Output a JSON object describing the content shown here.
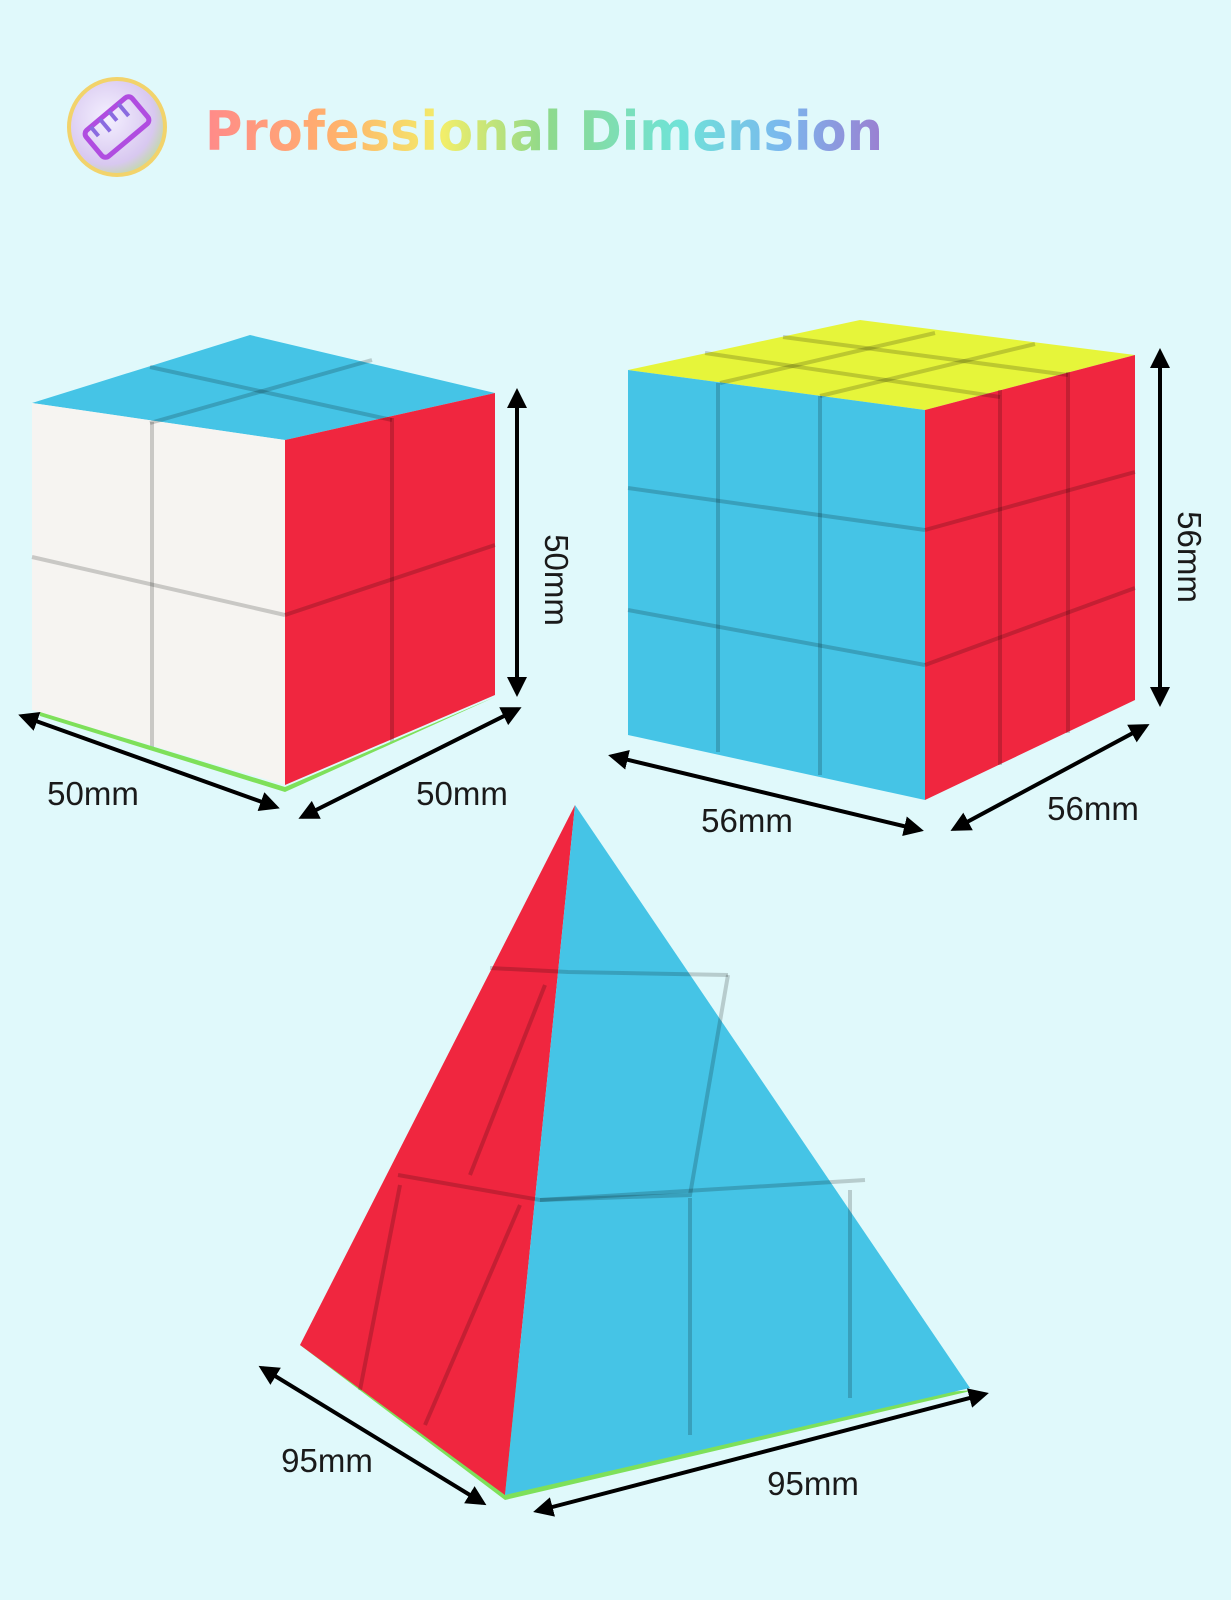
{
  "header": {
    "title": "Professional Dimension",
    "icon": "ruler-icon"
  },
  "products": {
    "cube_2x2": {
      "height": "50mm",
      "width": "50mm",
      "depth": "50mm"
    },
    "cube_3x3": {
      "height": "56mm",
      "width": "56mm",
      "depth": "56mm"
    },
    "pyramid": {
      "side_left": "95mm",
      "side_bottom": "95mm"
    }
  },
  "colors": {
    "background": "#e0f9fb",
    "red": "#f0263f",
    "blue": "#45c4e6",
    "yellow": "#e6f53a",
    "white": "#f6f4f1",
    "green": "#7ee05a"
  }
}
